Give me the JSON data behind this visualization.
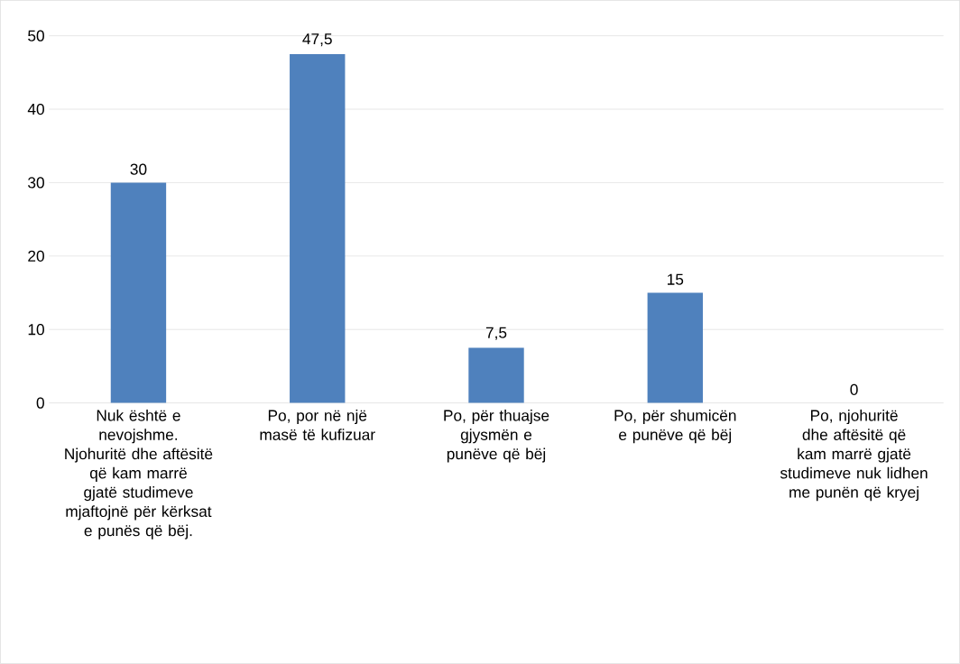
{
  "chart_data": {
    "type": "bar",
    "categories": [
      "Nuk është e nevojshme. Njohuritë dhe aftësitë që kam marrë gjatë studimeve mjaftojnë për kërksat e punës që bëj.",
      "Po, por në një masë të kufizuar",
      "Po, për thuajse gjysmën e punëve që bëj",
      "Po, për shumicën e punëve që bëj",
      "Po, njohuritë dhe aftësitë që kam marrë gjatë studimeve nuk lidhen me punën që kryej"
    ],
    "values": [
      30,
      47.5,
      7.5,
      15,
      0
    ],
    "value_labels": [
      "30",
      "47,5",
      "7,5",
      "15",
      "0"
    ],
    "color": "#4f81bd",
    "ylim": [
      0,
      50
    ],
    "yticks": [
      0,
      10,
      20,
      30,
      40,
      50
    ],
    "grid": "y"
  }
}
